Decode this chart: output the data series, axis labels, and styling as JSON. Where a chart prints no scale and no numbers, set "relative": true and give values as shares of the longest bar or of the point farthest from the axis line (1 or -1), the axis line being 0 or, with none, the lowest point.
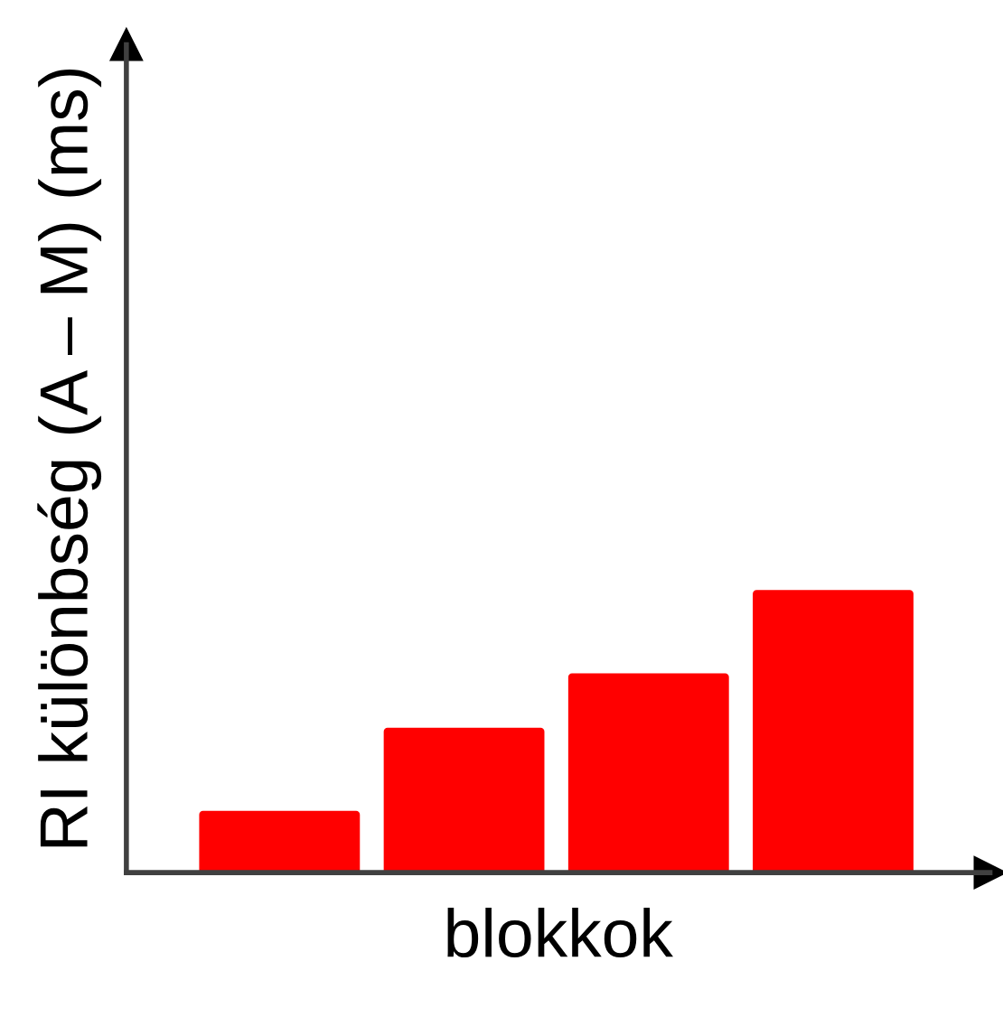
{
  "chart_data": {
    "type": "bar",
    "xlabel": "blokkok",
    "ylabel": "RI különbség (A – M) (ms)",
    "relative": true,
    "categories": [
      null,
      null,
      null,
      null
    ],
    "values": [
      0.208,
      0.506,
      0.701,
      1
    ],
    "color": "#ff0000",
    "grid": false,
    "legend": false,
    "tick_labels": false
  }
}
